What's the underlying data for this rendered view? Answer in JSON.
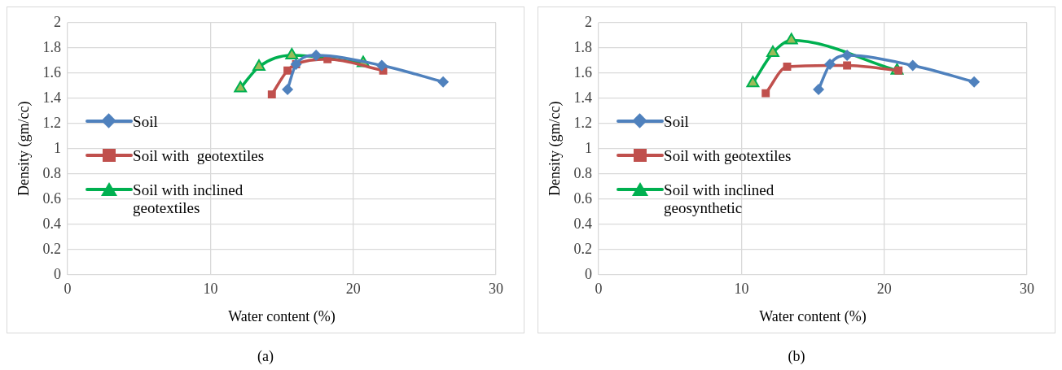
{
  "chart_data": [
    {
      "type": "line",
      "xlabel": "Water content (%)",
      "ylabel": "Density (gm/cc)",
      "xlim": [
        0,
        30
      ],
      "xticks": [
        0,
        10,
        20,
        30
      ],
      "ylim": [
        0,
        2
      ],
      "yticks": [
        0,
        0.2,
        0.4,
        0.6,
        0.8,
        1,
        1.2,
        1.4,
        1.6,
        1.8,
        2
      ],
      "grid": true,
      "legend": "left",
      "annotations": [
        "(a)"
      ],
      "series": [
        {
          "name": "Soil",
          "color": "#4f81bd",
          "marker": "diamond",
          "x": [
            15.4,
            16.0,
            17.4,
            22.0,
            26.3
          ],
          "values": [
            1.47,
            1.67,
            1.74,
            1.66,
            1.53
          ]
        },
        {
          "name": "Soil with  geotextiles",
          "color": "#c0504d",
          "marker": "square",
          "x": [
            14.3,
            15.4,
            16.0,
            18.2,
            22.1
          ],
          "values": [
            1.43,
            1.62,
            1.67,
            1.71,
            1.62
          ]
        },
        {
          "name": "Soil with inclined geotextiles",
          "color": "#00b050",
          "marker": "triangle",
          "x": [
            12.1,
            13.4,
            15.7,
            20.7
          ],
          "values": [
            1.48,
            1.65,
            1.74,
            1.68
          ]
        }
      ]
    },
    {
      "type": "line",
      "xlabel": "Water content (%)",
      "ylabel": "Density (gm/cc)",
      "xlim": [
        0,
        30
      ],
      "xticks": [
        0,
        10,
        20,
        30
      ],
      "ylim": [
        0,
        2
      ],
      "yticks": [
        0,
        0.2,
        0.4,
        0.6,
        0.8,
        1,
        1.2,
        1.4,
        1.6,
        1.8,
        2
      ],
      "grid": true,
      "legend": "left",
      "annotations": [
        "(b)"
      ],
      "series": [
        {
          "name": "Soil",
          "color": "#4f81bd",
          "marker": "diamond",
          "x": [
            15.4,
            16.2,
            17.4,
            22.0,
            26.3
          ],
          "values": [
            1.47,
            1.67,
            1.74,
            1.66,
            1.53
          ]
        },
        {
          "name": "Soil with geotextiles",
          "color": "#c0504d",
          "marker": "square",
          "x": [
            11.7,
            13.2,
            17.4,
            21.0
          ],
          "values": [
            1.44,
            1.65,
            1.66,
            1.62
          ]
        },
        {
          "name": "Soil with inclined geosynthetic",
          "color": "#00b050",
          "marker": "triangle",
          "x": [
            10.8,
            12.2,
            13.5,
            20.9
          ],
          "values": [
            1.52,
            1.76,
            1.86,
            1.62
          ]
        }
      ]
    }
  ]
}
